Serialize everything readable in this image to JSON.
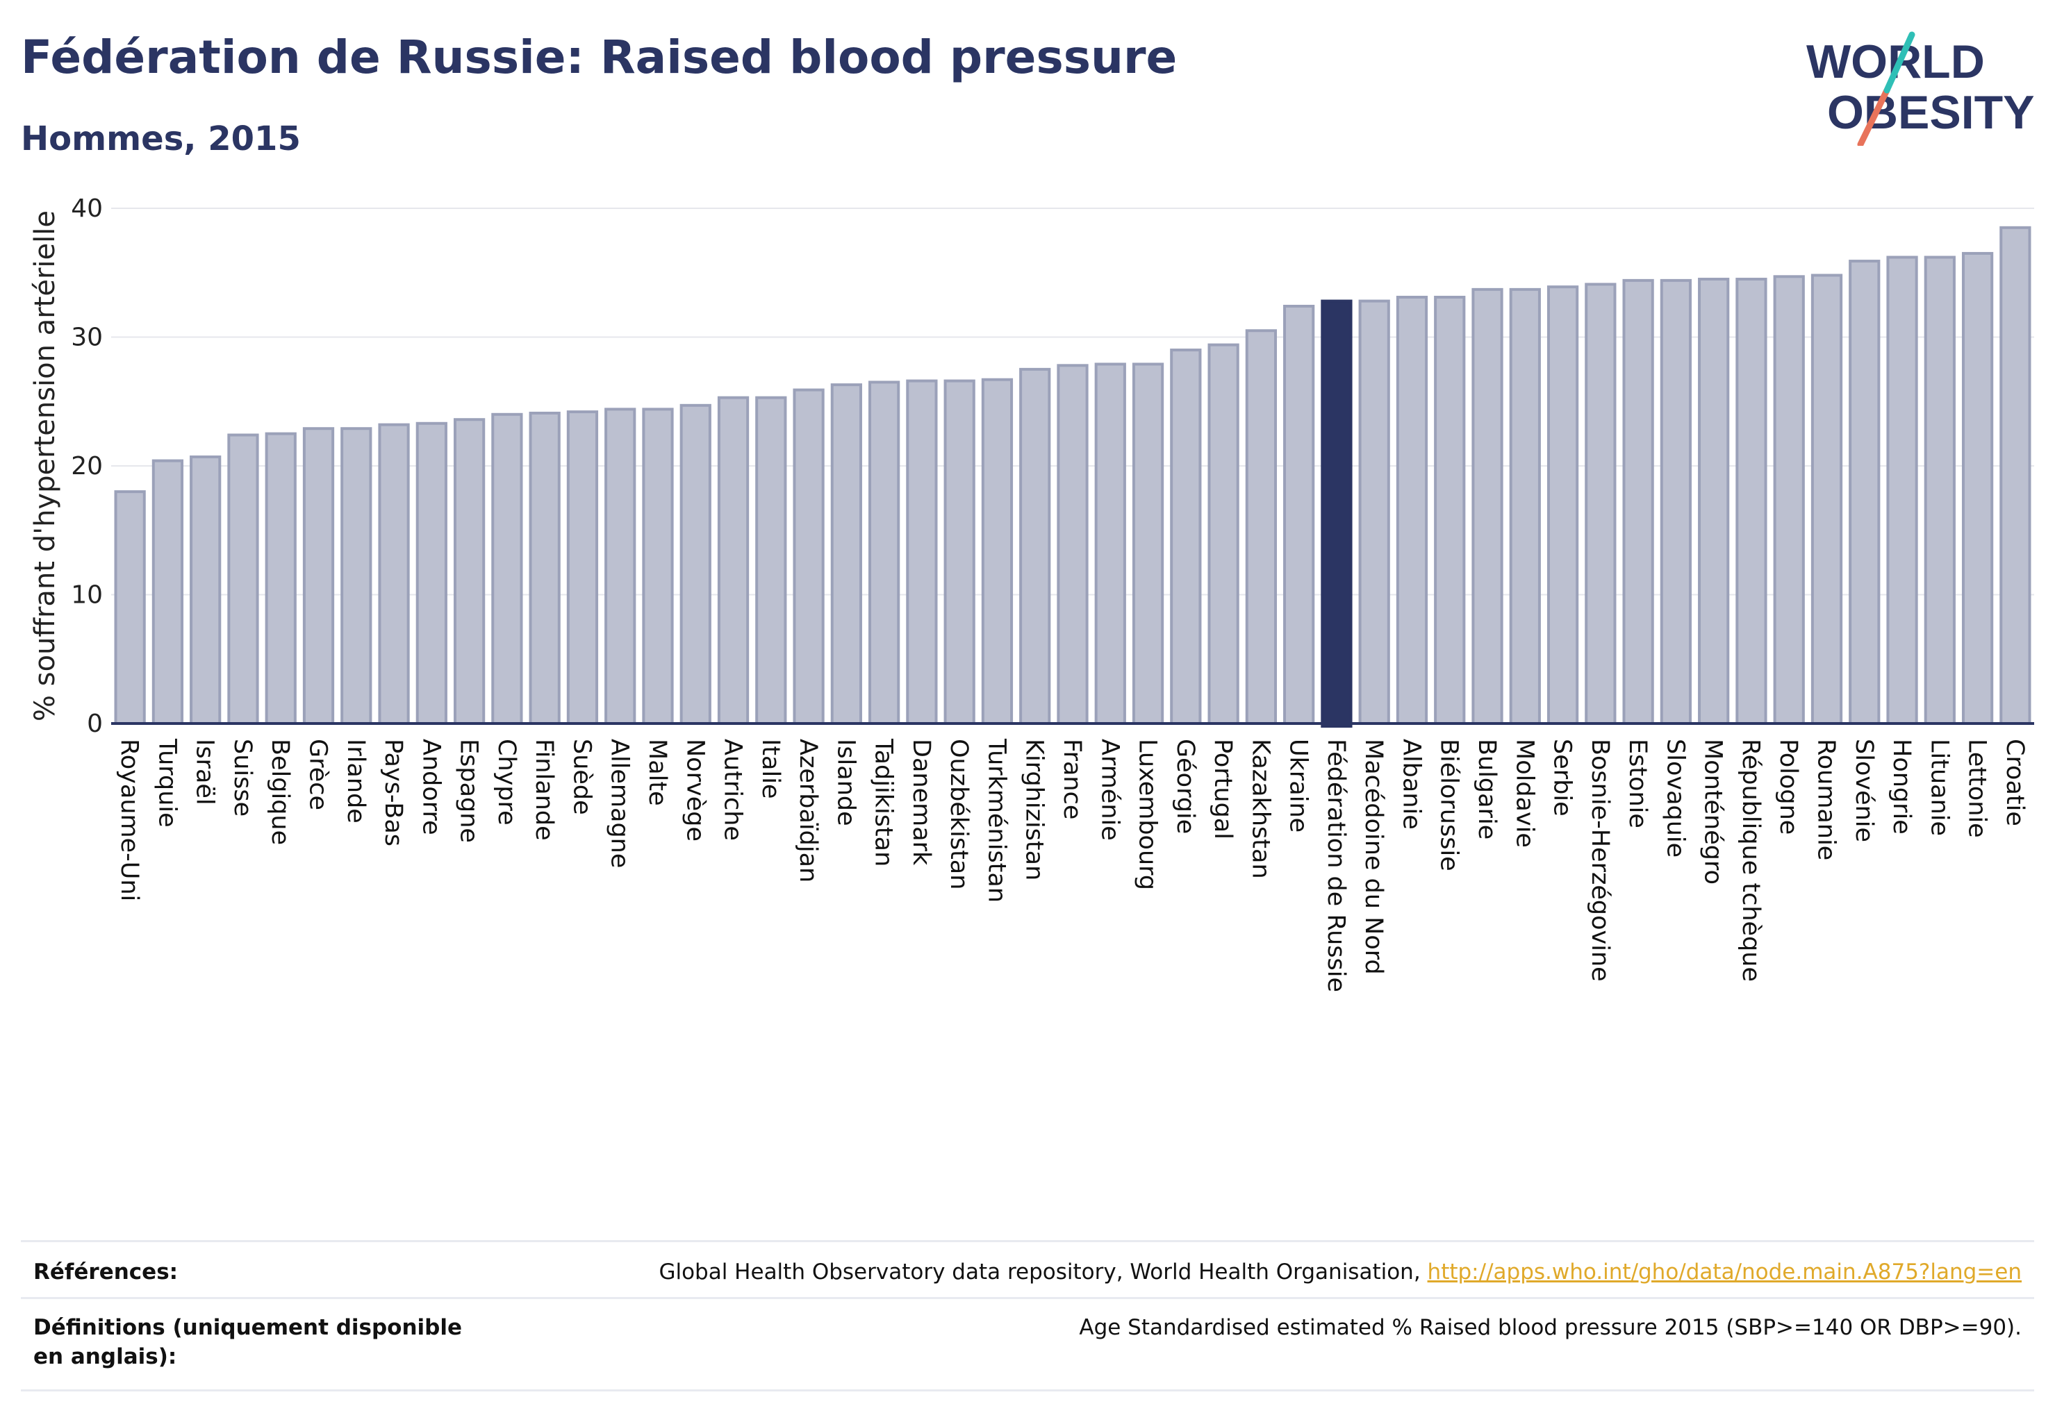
{
  "header": {
    "title": "Fédération de Russie: Raised blood pressure",
    "subtitle": "Hommes, 2015"
  },
  "logo": {
    "line1": "WORLD",
    "line2": "OBESITY"
  },
  "colors": {
    "bar": "#bcc0d0",
    "bar_outline": "#9ba1b9",
    "highlight": "#2b3563",
    "grid": "#e6e7ec",
    "axis": "#2b3563"
  },
  "chart_data": {
    "type": "bar",
    "ylabel": "% souffrant d'hypertension artérielle",
    "ylim": [
      0,
      40
    ],
    "yticks": [
      0,
      10,
      20,
      30,
      40
    ],
    "grid": true,
    "highlight": "Fédération de Russie",
    "categories": [
      "Royaume-Uni",
      "Turquie",
      "Israël",
      "Suisse",
      "Belgique",
      "Grèce",
      "Irlande",
      "Pays-Bas",
      "Andorre",
      "Espagne",
      "Chypre",
      "Finlande",
      "Suède",
      "Allemagne",
      "Malte",
      "Norvège",
      "Autriche",
      "Italie",
      "Azerbaïdjan",
      "Islande",
      "Tadjikistan",
      "Danemark",
      "Ouzbékistan",
      "Turkménistan",
      "Kirghizistan",
      "France",
      "Arménie",
      "Luxembourg",
      "Géorgie",
      "Portugal",
      "Kazakhstan",
      "Ukraine",
      "Fédération de Russie",
      "Macédoine du Nord",
      "Albanie",
      "Biélorussie",
      "Bulgarie",
      "Moldavie",
      "Serbie",
      "Bosnie-Herzégovine",
      "Estonie",
      "Slovaquie",
      "Monténégro",
      "République tchèque",
      "Pologne",
      "Roumanie",
      "Slovénie",
      "Hongrie",
      "Lituanie",
      "Lettonie",
      "Croatie"
    ],
    "values": [
      18.0,
      20.4,
      20.7,
      22.4,
      22.5,
      22.9,
      22.9,
      23.2,
      23.3,
      23.6,
      24.0,
      24.1,
      24.2,
      24.4,
      24.4,
      24.7,
      25.3,
      25.3,
      25.9,
      26.3,
      26.5,
      26.6,
      26.6,
      26.7,
      27.5,
      27.8,
      27.9,
      27.9,
      29.0,
      29.4,
      30.5,
      32.4,
      32.8,
      32.8,
      33.1,
      33.1,
      33.7,
      33.7,
      33.9,
      34.1,
      34.4,
      34.4,
      34.5,
      34.5,
      34.7,
      34.8,
      35.9,
      36.2,
      36.2,
      36.5,
      38.5
    ]
  },
  "footer": {
    "references_label": "Références:",
    "references_text": "Global Health Observatory data repository, World Health Organisation, ",
    "references_link": "http://apps.who.int/gho/data/node.main.A875?lang=en",
    "definitions_label": "Définitions (uniquement disponible en anglais):",
    "definitions_text": "Age Standardised estimated % Raised blood pressure 2015 (SBP>=140 OR DBP>=90)."
  }
}
